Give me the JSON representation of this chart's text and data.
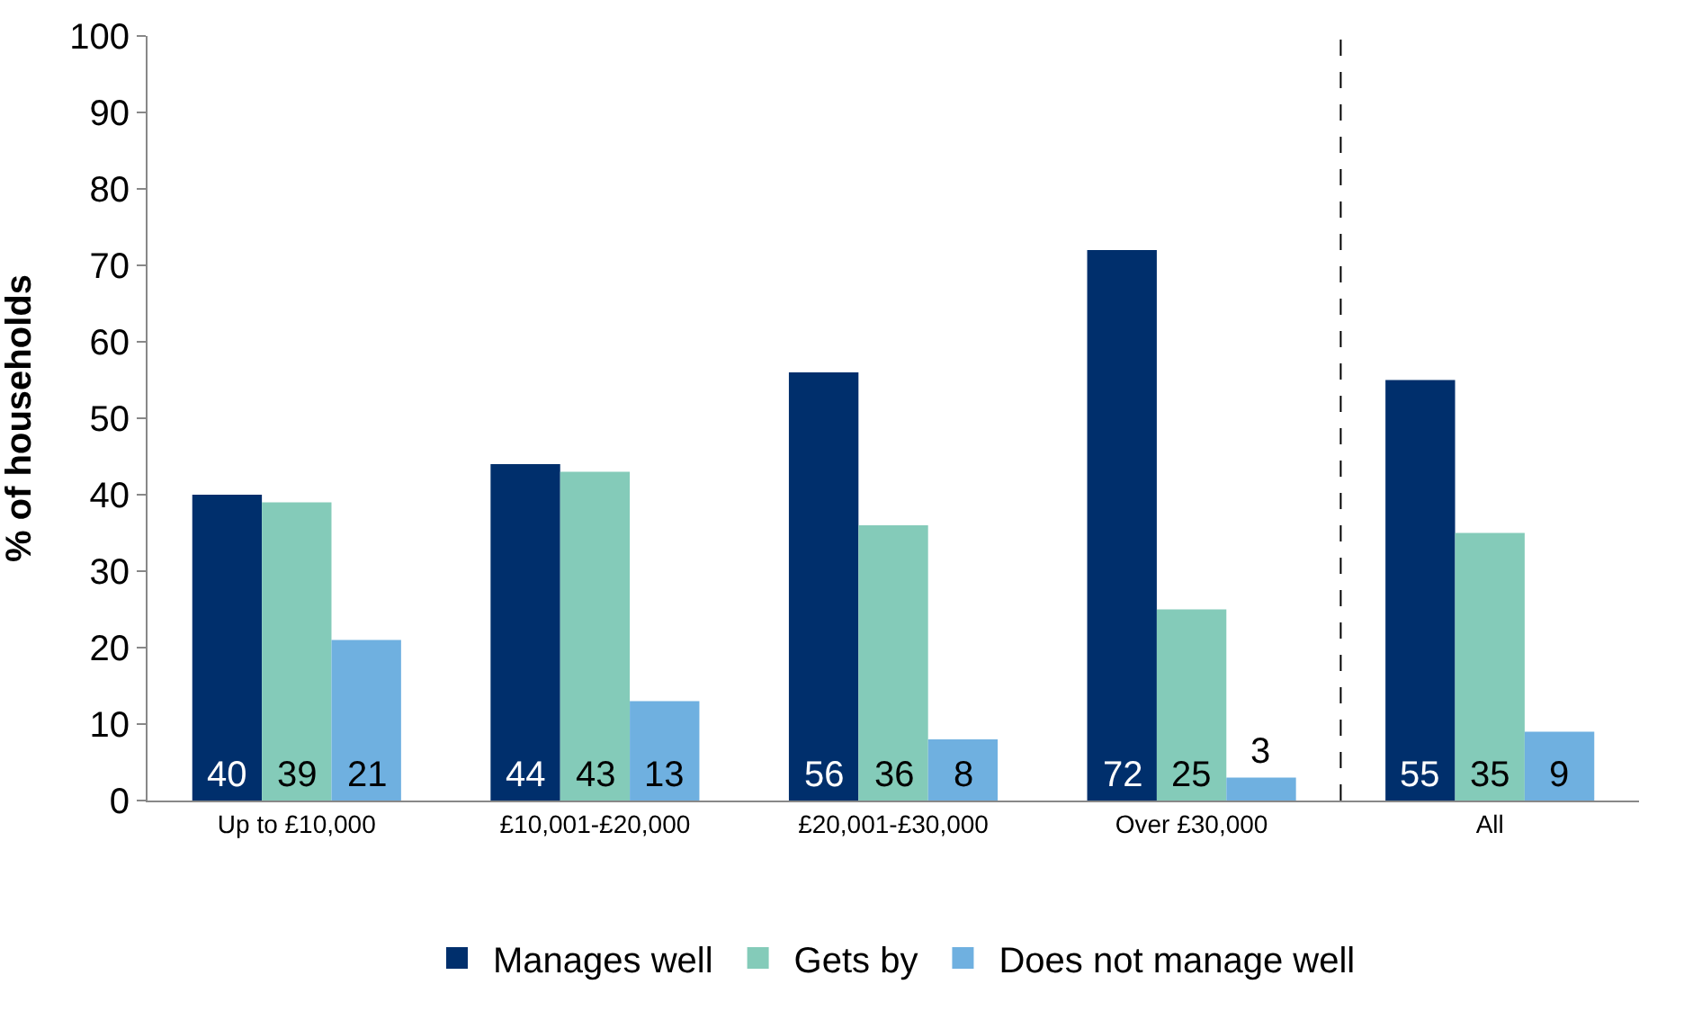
{
  "chart_data": {
    "type": "bar",
    "ylabel": "% of households",
    "categories": [
      "Up to £10,000",
      "£10,001-£20,000",
      "£20,001-£30,000",
      "Over £30,000",
      "All"
    ],
    "series": [
      {
        "name": "Manages well",
        "color": "#002f6c",
        "values": [
          40,
          44,
          56,
          72,
          55
        ]
      },
      {
        "name": "Gets by",
        "color": "#84cbb9",
        "values": [
          39,
          43,
          36,
          25,
          35
        ]
      },
      {
        "name": "Does not manage well",
        "color": "#6fb0e0",
        "values": [
          21,
          13,
          8,
          3,
          9
        ]
      }
    ],
    "ylim": [
      0,
      100
    ],
    "yticks": [
      0,
      10,
      20,
      30,
      40,
      50,
      60,
      70,
      80,
      90,
      100
    ],
    "data_labels": true,
    "legend": "bottom"
  }
}
